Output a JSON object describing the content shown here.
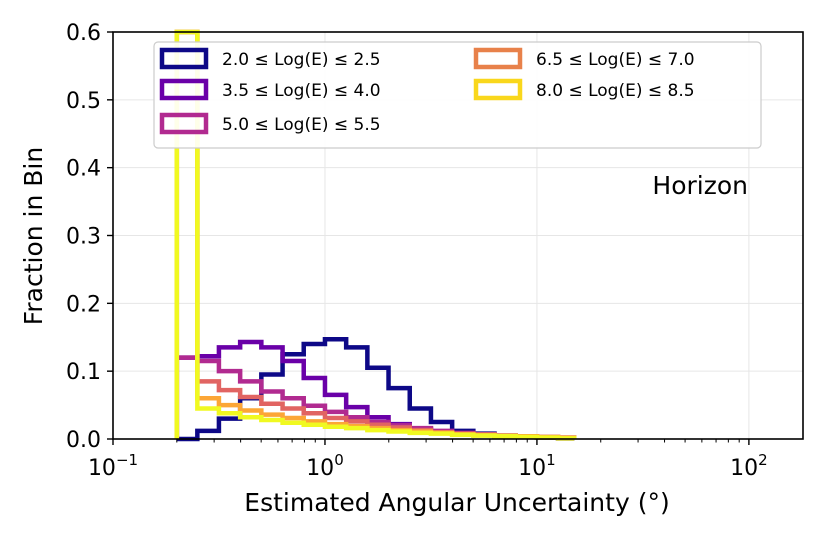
{
  "chart_data": {
    "type": "step-histogram",
    "title": "",
    "xlabel": "Estimated Angular Uncertainty (°)",
    "ylabel": "Fraction in Bin",
    "xscale": "log",
    "xlim": [
      0.1,
      180
    ],
    "ylim": [
      0,
      0.6
    ],
    "grid": true,
    "x_ticks": [
      {
        "value": 0.1,
        "base": "10",
        "exp": "−1"
      },
      {
        "value": 1,
        "base": "10",
        "exp": "0"
      },
      {
        "value": 10,
        "base": "10",
        "exp": "1"
      },
      {
        "value": 100,
        "base": "10",
        "exp": "2"
      }
    ],
    "y_ticks": [
      "0.0",
      "0.1",
      "0.2",
      "0.3",
      "0.4",
      "0.5",
      "0.6"
    ],
    "annotation": "Horizon",
    "legend_position": "top",
    "bin_edges": [
      0.2,
      0.25,
      0.316,
      0.398,
      0.501,
      0.631,
      0.794,
      1.0,
      1.259,
      1.585,
      1.995,
      2.512,
      3.162,
      3.981,
      5.012,
      6.31,
      7.943,
      10.0,
      12.589,
      15.0
    ],
    "series": [
      {
        "name": "2.0 ≤ Log(E) ≤ 2.5",
        "color": "#0d0887",
        "values": [
          0.0,
          0.012,
          0.03,
          0.06,
          0.095,
          0.125,
          0.14,
          0.147,
          0.135,
          0.105,
          0.075,
          0.045,
          0.025,
          0.012,
          0.008,
          0.005,
          0.003,
          0.002,
          0.001
        ]
      },
      {
        "name": "3.5 ≤ Log(E) ≤ 4.0",
        "color": "#6a00a8",
        "values": [
          0.12,
          0.122,
          0.135,
          0.143,
          0.135,
          0.115,
          0.09,
          0.065,
          0.047,
          0.032,
          0.022,
          0.015,
          0.011,
          0.008,
          0.006,
          0.004,
          0.003,
          0.002,
          0.001
        ]
      },
      {
        "name": "5.0 ≤ Log(E) ≤ 5.5",
        "color": "#b12a90",
        "values": [
          0.12,
          0.115,
          0.1,
          0.085,
          0.07,
          0.06,
          0.049,
          0.04,
          0.032,
          0.025,
          0.02,
          0.016,
          0.012,
          0.009,
          0.007,
          0.005,
          0.004,
          0.003,
          0.002
        ]
      },
      {
        "name": "6.5 ≤ Log(E) ≤ 7.0",
        "color": "#e16462",
        "values": [
          0.6,
          0.085,
          0.072,
          0.062,
          0.052,
          0.045,
          0.038,
          0.031,
          0.026,
          0.021,
          0.017,
          0.013,
          0.01,
          0.008,
          0.006,
          0.005,
          0.004,
          0.003,
          0.002
        ]
      },
      {
        "name": "8.0 ≤ Log(E) ≤ 8.5",
        "color": "#fca636",
        "values": [
          0.6,
          0.06,
          0.05,
          0.042,
          0.036,
          0.031,
          0.026,
          0.022,
          0.019,
          0.016,
          0.013,
          0.011,
          0.009,
          0.007,
          0.006,
          0.005,
          0.004,
          0.003,
          0.002
        ]
      },
      {
        "name": "8.0 ≤ Log(E) ≤ 8.5 ",
        "color": "#f0f921",
        "values": [
          0.6,
          0.045,
          0.038,
          0.032,
          0.028,
          0.024,
          0.021,
          0.018,
          0.016,
          0.013,
          0.011,
          0.009,
          0.008,
          0.006,
          0.005,
          0.004,
          0.003,
          0.002,
          0.001
        ]
      }
    ],
    "legend": [
      {
        "label": "2.0 ≤ Log(E) ≤ 2.5",
        "color": "#0d0887"
      },
      {
        "label": "3.5 ≤ Log(E) ≤ 4.0",
        "color": "#6a00a8"
      },
      {
        "label": "5.0 ≤ Log(E) ≤ 5.5",
        "color": "#b12a90"
      },
      {
        "label": "6.5 ≤ Log(E) ≤ 7.0",
        "color": "#e8814a"
      },
      {
        "label": "8.0 ≤ Log(E) ≤ 8.5",
        "color": "#f9d71c"
      }
    ]
  }
}
